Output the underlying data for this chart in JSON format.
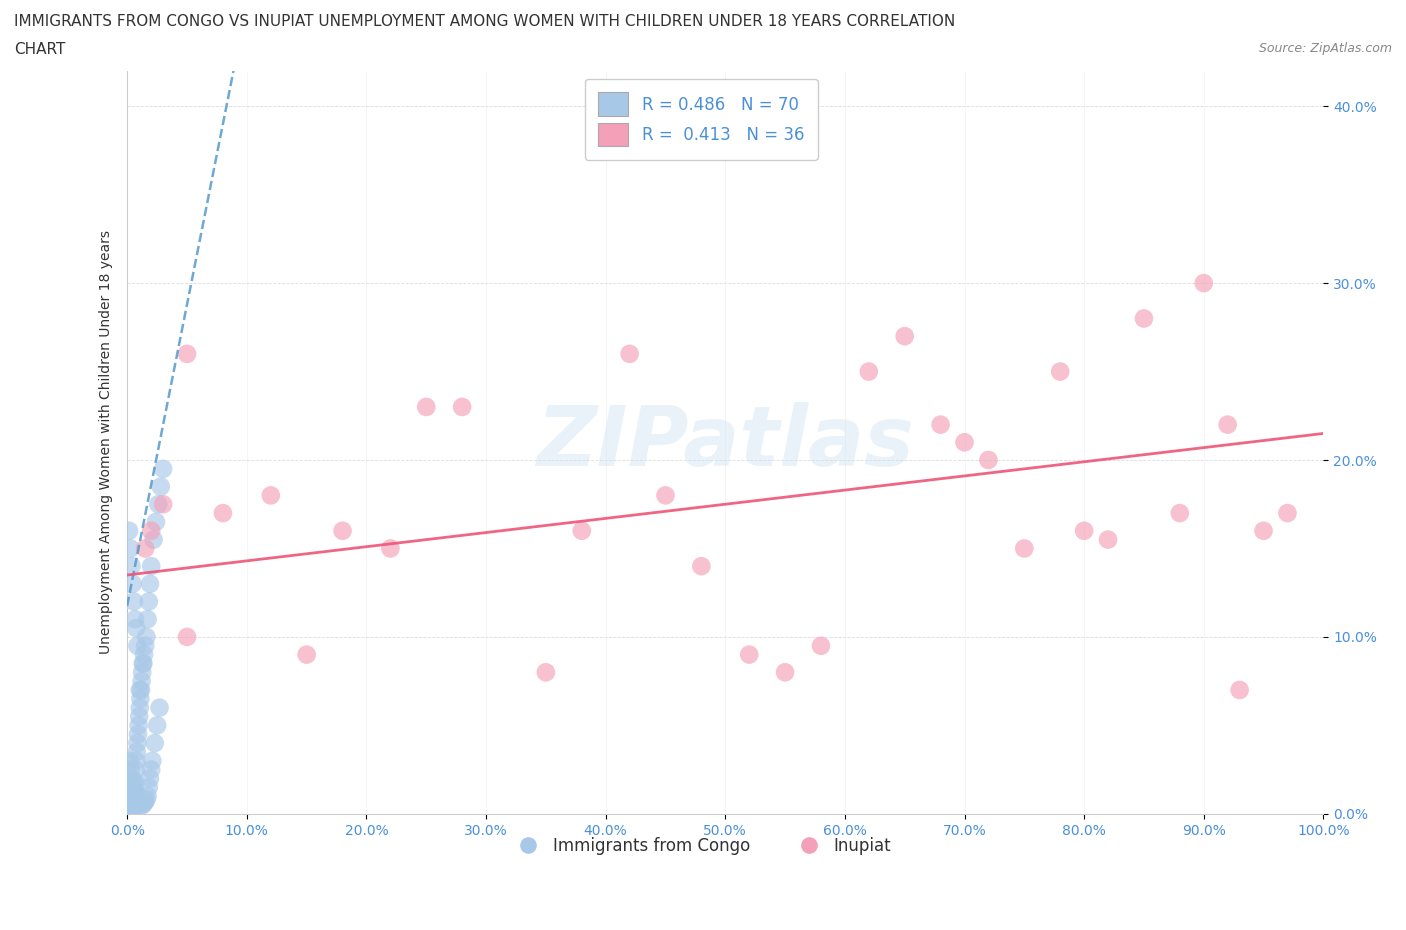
{
  "title_line1": "IMMIGRANTS FROM CONGO VS INUPIAT UNEMPLOYMENT AMONG WOMEN WITH CHILDREN UNDER 18 YEARS CORRELATION",
  "title_line2": "CHART",
  "source": "Source: ZipAtlas.com",
  "ylabel": "Unemployment Among Women with Children Under 18 years",
  "xlim": [
    0,
    100
  ],
  "ylim": [
    0,
    42
  ],
  "xticks": [
    0,
    10,
    20,
    30,
    40,
    50,
    60,
    70,
    80,
    90,
    100
  ],
  "yticks": [
    0,
    10,
    20,
    30,
    40
  ],
  "congo_R": 0.486,
  "congo_N": 70,
  "inupiat_R": 0.413,
  "inupiat_N": 36,
  "congo_color": "#a8c8e8",
  "inupiat_color": "#f4a0b8",
  "congo_trendline_color": "#5599cc",
  "inupiat_trendline_color": "#ee5577",
  "watermark": "ZIPatlas",
  "background_color": "#ffffff",
  "grid_color": "#dddddd",
  "congo_scatter_x": [
    0.1,
    0.15,
    0.2,
    0.25,
    0.3,
    0.35,
    0.4,
    0.45,
    0.5,
    0.55,
    0.6,
    0.65,
    0.7,
    0.75,
    0.8,
    0.85,
    0.9,
    0.95,
    1.0,
    1.05,
    1.1,
    1.15,
    1.2,
    1.25,
    1.3,
    1.4,
    1.5,
    1.6,
    1.7,
    1.8,
    1.9,
    2.0,
    2.2,
    2.4,
    2.6,
    2.8,
    3.0,
    0.2,
    0.3,
    0.4,
    0.5,
    0.6,
    0.7,
    0.8,
    0.9,
    1.0,
    1.1,
    1.2,
    1.3,
    1.4,
    1.5,
    1.6,
    1.7,
    1.8,
    1.9,
    2.0,
    2.1,
    2.3,
    2.5,
    2.7,
    0.15,
    0.25,
    0.35,
    0.45,
    0.55,
    0.65,
    0.75,
    0.85,
    1.05,
    1.35
  ],
  "congo_scatter_y": [
    2.0,
    1.5,
    1.0,
    0.5,
    0.3,
    0.2,
    0.2,
    0.3,
    0.5,
    0.8,
    1.2,
    1.8,
    2.5,
    3.0,
    3.5,
    4.0,
    4.5,
    5.0,
    5.5,
    6.0,
    6.5,
    7.0,
    7.5,
    8.0,
    8.5,
    9.0,
    9.5,
    10.0,
    11.0,
    12.0,
    13.0,
    14.0,
    15.5,
    16.5,
    17.5,
    18.5,
    19.5,
    3.0,
    2.5,
    2.0,
    1.8,
    1.5,
    1.2,
    1.0,
    0.8,
    0.7,
    0.6,
    0.5,
    0.5,
    0.6,
    0.7,
    0.8,
    1.0,
    1.5,
    2.0,
    2.5,
    3.0,
    4.0,
    5.0,
    6.0,
    16.0,
    15.0,
    14.0,
    13.0,
    12.0,
    11.0,
    10.5,
    9.5,
    7.0,
    8.5
  ],
  "inupiat_scatter_x": [
    1.5,
    2.0,
    3.0,
    5.0,
    8.0,
    12.0,
    18.0,
    22.0,
    28.0,
    35.0,
    38.0,
    42.0,
    48.0,
    52.0,
    58.0,
    62.0,
    65.0,
    68.0,
    72.0,
    75.0,
    78.0,
    82.0,
    85.0,
    88.0,
    90.0,
    92.0,
    95.0,
    97.0,
    5.0,
    15.0,
    25.0,
    45.0,
    55.0,
    70.0,
    80.0,
    93.0
  ],
  "inupiat_scatter_y": [
    15.0,
    16.0,
    17.5,
    26.0,
    17.0,
    18.0,
    16.0,
    15.0,
    23.0,
    8.0,
    16.0,
    26.0,
    14.0,
    9.0,
    9.5,
    25.0,
    27.0,
    22.0,
    20.0,
    15.0,
    25.0,
    15.5,
    28.0,
    17.0,
    30.0,
    22.0,
    16.0,
    17.0,
    10.0,
    9.0,
    23.0,
    18.0,
    8.0,
    21.0,
    16.0,
    7.0
  ],
  "congo_trend_x0": 0.5,
  "congo_trend_x1": 3.0,
  "congo_trend_y0": 13.5,
  "congo_trend_y1": 22.0,
  "inupiat_trend_x0": 0,
  "inupiat_trend_x1": 100,
  "inupiat_trend_y0": 13.5,
  "inupiat_trend_y1": 21.5,
  "title_fontsize": 11,
  "axis_label_fontsize": 10,
  "tick_fontsize": 10,
  "legend_fontsize": 12,
  "watermark_fontsize": 60
}
